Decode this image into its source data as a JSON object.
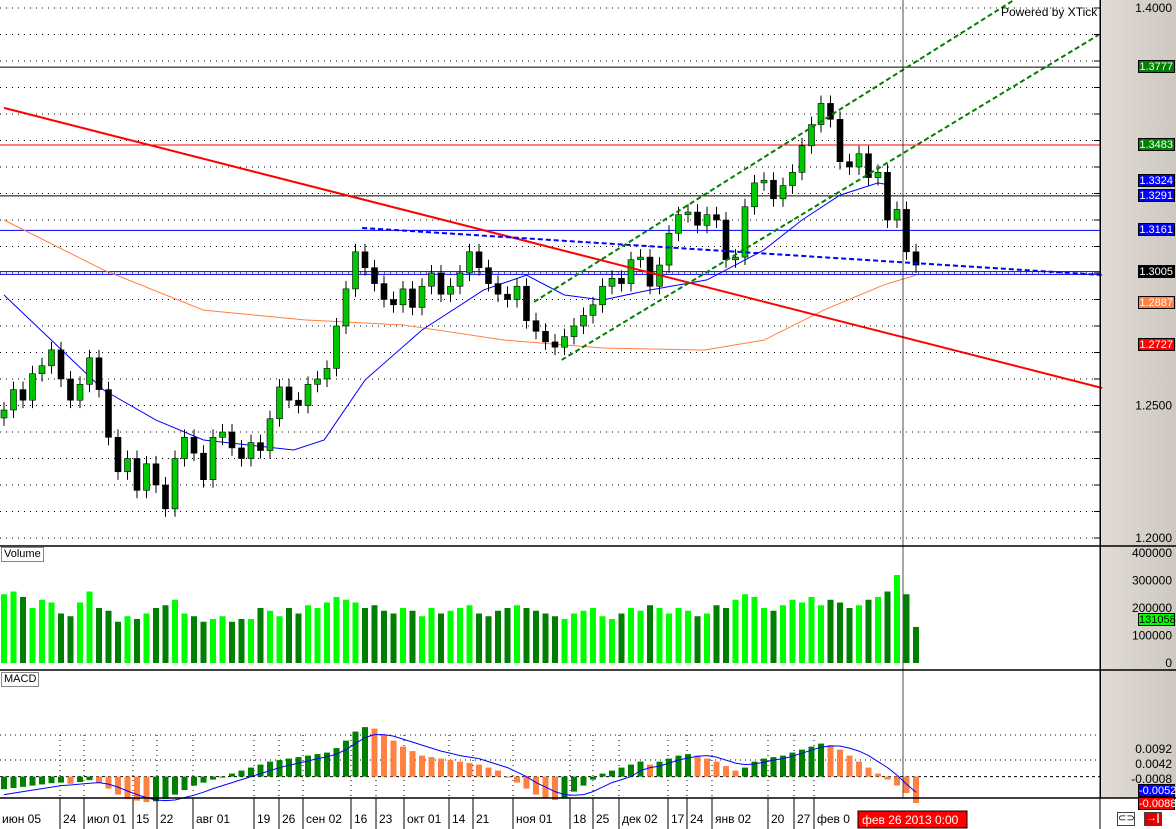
{
  "watermark": "Powered by XTick",
  "panes": {
    "volume_label": "Volume",
    "macd_label": "MACD"
  },
  "colors": {
    "up": "#00c800",
    "down": "#000000",
    "vol_up": "#00ff00",
    "vol_down": "#008000",
    "hist_up": "#008000",
    "hist_down": "#ff8040",
    "ma_fast": "#0000ff",
    "ma_slow": "#ff8040",
    "signal": "#0000ff",
    "cursor": "#000000"
  },
  "cursor_date": "фев 26 2013 0:00",
  "buttons": [
    {
      "name": "link-button",
      "icon": "link-icon"
    },
    {
      "name": "scroll-end-button",
      "icon": "arrow-to-end-icon"
    }
  ],
  "chart_data": {
    "type": "candlestick",
    "price_axis": {
      "ylim": [
        1.195,
        1.403
      ],
      "ticks": [
        "1.4000",
        "1.2500",
        "1.2000"
      ]
    },
    "volume_axis": {
      "ylim": [
        0,
        410000
      ],
      "ticks": [
        "400000",
        "300000",
        "200000",
        "100000",
        "0"
      ]
    },
    "macd_axis": {
      "ticks": [
        "0.0092",
        "0.0042",
        "-0.0008"
      ]
    },
    "x_tick_labels": [
      "июн 05",
      "24",
      "июл 01",
      "15",
      "22",
      "авг 01",
      "19",
      "26",
      "сен 02",
      "16",
      "23",
      "окт 01",
      "14",
      "21",
      "ноя 01",
      "18",
      "25",
      "дек 02",
      "17",
      "24",
      "янв 02",
      "20",
      "27",
      "фев 0"
    ],
    "close": [
      1.2483,
      1.256,
      1.252,
      1.262,
      1.265,
      1.271,
      1.26,
      1.252,
      1.258,
      1.268,
      1.256,
      1.238,
      1.225,
      1.23,
      1.218,
      1.228,
      1.22,
      1.211,
      1.23,
      1.238,
      1.232,
      1.222,
      1.238,
      1.24,
      1.234,
      1.23,
      1.236,
      1.233,
      1.245,
      1.257,
      1.252,
      1.25,
      1.258,
      1.26,
      1.264,
      1.28,
      1.294,
      1.308,
      1.302,
      1.296,
      1.29,
      1.288,
      1.294,
      1.287,
      1.295,
      1.3,
      1.292,
      1.295,
      1.3,
      1.308,
      1.302,
      1.296,
      1.292,
      1.29,
      1.295,
      1.282,
      1.278,
      1.274,
      1.272,
      1.276,
      1.28,
      1.284,
      1.288,
      1.295,
      1.298,
      1.296,
      1.305,
      1.306,
      1.295,
      1.303,
      1.315,
      1.322,
      1.323,
      1.318,
      1.322,
      1.32,
      1.305,
      1.306,
      1.325,
      1.334,
      1.335,
      1.328,
      1.333,
      1.338,
      1.348,
      1.356,
      1.364,
      1.358,
      1.342,
      1.34,
      1.345,
      1.336,
      1.338,
      1.32,
      1.324,
      1.308,
      1.303
    ],
    "volume": [
      250000,
      260000,
      240000,
      200000,
      230000,
      220000,
      180000,
      170000,
      220000,
      260000,
      200000,
      190000,
      150000,
      170000,
      160000,
      180000,
      200000,
      210000,
      230000,
      180000,
      170000,
      150000,
      160000,
      170000,
      150000,
      160000,
      160000,
      200000,
      190000,
      170000,
      200000,
      180000,
      210000,
      200000,
      220000,
      240000,
      230000,
      220000,
      200000,
      210000,
      190000,
      180000,
      200000,
      190000,
      170000,
      200000,
      180000,
      190000,
      200000,
      210000,
      180000,
      170000,
      190000,
      200000,
      210000,
      200000,
      190000,
      180000,
      170000,
      160000,
      180000,
      190000,
      200000,
      170000,
      160000,
      180000,
      200000,
      190000,
      210000,
      200000,
      180000,
      200000,
      190000,
      170000,
      180000,
      210000,
      200000,
      230000,
      250000,
      240000,
      200000,
      190000,
      210000,
      230000,
      220000,
      240000,
      210000,
      230000,
      220000,
      200000,
      210000,
      230000,
      240000,
      260000,
      320000,
      250000,
      131058
    ],
    "macd_histogram": [
      -0.0042,
      -0.0038,
      -0.0034,
      -0.003,
      -0.0026,
      -0.0022,
      -0.002,
      -0.0024,
      -0.0018,
      -0.0012,
      -0.002,
      -0.004,
      -0.006,
      -0.0075,
      -0.008,
      -0.0085,
      -0.0082,
      -0.0075,
      -0.006,
      -0.0045,
      -0.003,
      -0.002,
      -0.001,
      0.0,
      0.001,
      0.002,
      0.003,
      0.004,
      0.005,
      0.0055,
      0.006,
      0.0065,
      0.007,
      0.0075,
      0.008,
      0.0095,
      0.012,
      0.015,
      0.0165,
      0.016,
      0.014,
      0.012,
      0.01,
      0.0085,
      0.007,
      0.0065,
      0.006,
      0.0055,
      0.005,
      0.0045,
      0.004,
      0.003,
      0.002,
      0.0,
      -0.002,
      -0.004,
      -0.006,
      -0.0072,
      -0.0078,
      -0.007,
      -0.005,
      -0.003,
      -0.001,
      0.001,
      0.002,
      0.003,
      0.004,
      0.005,
      0.004,
      0.005,
      0.006,
      0.007,
      0.0075,
      0.007,
      0.006,
      0.005,
      0.0035,
      0.002,
      0.003,
      0.005,
      0.006,
      0.0065,
      0.007,
      0.008,
      0.009,
      0.01,
      0.011,
      0.0105,
      0.009,
      0.007,
      0.005,
      0.003,
      0.001,
      -0.001,
      -0.003,
      -0.0055,
      -0.0088
    ],
    "macd_signal": [
      -0.006,
      -0.0055,
      -0.005,
      -0.0045,
      -0.004,
      -0.0035,
      -0.003,
      -0.0028,
      -0.0025,
      -0.0022,
      -0.002,
      -0.0025,
      -0.0035,
      -0.0048,
      -0.006,
      -0.007,
      -0.0078,
      -0.008,
      -0.0078,
      -0.007,
      -0.0062,
      -0.0052,
      -0.004,
      -0.003,
      -0.002,
      -0.001,
      0.0,
      0.001,
      0.002,
      0.003,
      0.0038,
      0.0045,
      0.0052,
      0.006,
      0.0066,
      0.0075,
      0.009,
      0.011,
      0.013,
      0.014,
      0.014,
      0.0135,
      0.0125,
      0.0115,
      0.0105,
      0.0095,
      0.0085,
      0.0078,
      0.007,
      0.0065,
      0.006,
      0.005,
      0.004,
      0.003,
      0.0015,
      0.0,
      -0.002,
      -0.0035,
      -0.005,
      -0.006,
      -0.0062,
      -0.006,
      -0.005,
      -0.0035,
      -0.002,
      -0.001,
      0.0,
      0.002,
      0.003,
      0.0035,
      0.0045,
      0.0055,
      0.0062,
      0.0068,
      0.007,
      0.0065,
      0.0055,
      0.0045,
      0.004,
      0.0042,
      0.0048,
      0.0055,
      0.006,
      0.0068,
      0.0078,
      0.0088,
      0.0098,
      0.0102,
      0.0102,
      0.0095,
      0.0085,
      0.007,
      0.005,
      0.003,
      0.0005,
      -0.0025,
      -0.0052
    ],
    "ma_fast": [
      [
        0,
        1.2917
      ],
      [
        10.5,
        1.2558
      ],
      [
        16,
        1.2445
      ],
      [
        21,
        1.237
      ],
      [
        30.5,
        1.2332
      ],
      [
        33.7,
        1.237
      ],
      [
        38,
        1.2596
      ],
      [
        44,
        1.2785
      ],
      [
        50.5,
        1.2936
      ],
      [
        55,
        1.2992
      ],
      [
        59,
        1.2917
      ],
      [
        63,
        1.2898
      ],
      [
        68,
        1.2936
      ],
      [
        74,
        1.2974
      ],
      [
        80,
        1.3087
      ],
      [
        84,
        1.32
      ],
      [
        88,
        1.3294
      ],
      [
        92,
        1.334
      ],
      [
        93.2,
        1.3332
      ]
    ],
    "ma_slow": [
      [
        0,
        1.32
      ],
      [
        10.5,
        1.3011
      ],
      [
        21,
        1.286
      ],
      [
        31.6,
        1.2823
      ],
      [
        42,
        1.2804
      ],
      [
        52.6,
        1.2747
      ],
      [
        63,
        1.2717
      ],
      [
        73.7,
        1.2709
      ],
      [
        80,
        1.2747
      ],
      [
        86.3,
        1.286
      ],
      [
        92.6,
        1.2955
      ],
      [
        96,
        1.2992
      ]
    ],
    "trendlines": [
      {
        "color": "#ff0000",
        "style": "solid",
        "from": [
          0,
          1.3623
        ],
        "to": [
          115.6,
          1.2566
        ]
      },
      {
        "color": "#0000ff",
        "style": "dashed",
        "from": [
          37.7,
          1.317
        ],
        "to": [
          115.8,
          1.2992
        ]
      },
      {
        "color": "#008000",
        "style": "dashed",
        "from": [
          58.7,
          1.2672
        ],
        "to": [
          115.2,
          1.3898
        ]
      },
      {
        "color": "#008000",
        "style": "dashed",
        "from": [
          55.8,
          1.2891
        ],
        "to": [
          106.3,
          1.403
        ]
      }
    ],
    "levels": [
      {
        "value": 1.3777,
        "color": "#000000"
      },
      {
        "value": 1.3483,
        "color": "#ff0000"
      },
      {
        "value": 1.3291,
        "color": "#000000"
      },
      {
        "value": 1.3161,
        "color": "#0000ff"
      },
      {
        "value": 1.3005,
        "color": "#0000ff"
      },
      {
        "value": 1.2995,
        "color": "#0000ff"
      }
    ],
    "price_tags": [
      {
        "text": "1.3777",
        "bg": "#008000"
      },
      {
        "text": "1.3483",
        "bg": "#008000"
      },
      {
        "text": "1.3324",
        "bg": "#0000ff"
      },
      {
        "text": "1.3291",
        "bg": "#0000ff"
      },
      {
        "text": "1.3161",
        "bg": "#0000ff"
      },
      {
        "text": "1.3005",
        "bg": "#000000"
      },
      {
        "text": "1.2887",
        "bg": "#ff8040"
      },
      {
        "text": "1.2727",
        "bg": "#ff0000"
      }
    ],
    "volume_tag": {
      "text": "131058",
      "bg": "#00ff00"
    },
    "macd_tags": [
      {
        "text": "-0.0052",
        "bg": "#0000ff"
      },
      {
        "text": "-0.0088",
        "bg": "#ff0000"
      }
    ]
  }
}
